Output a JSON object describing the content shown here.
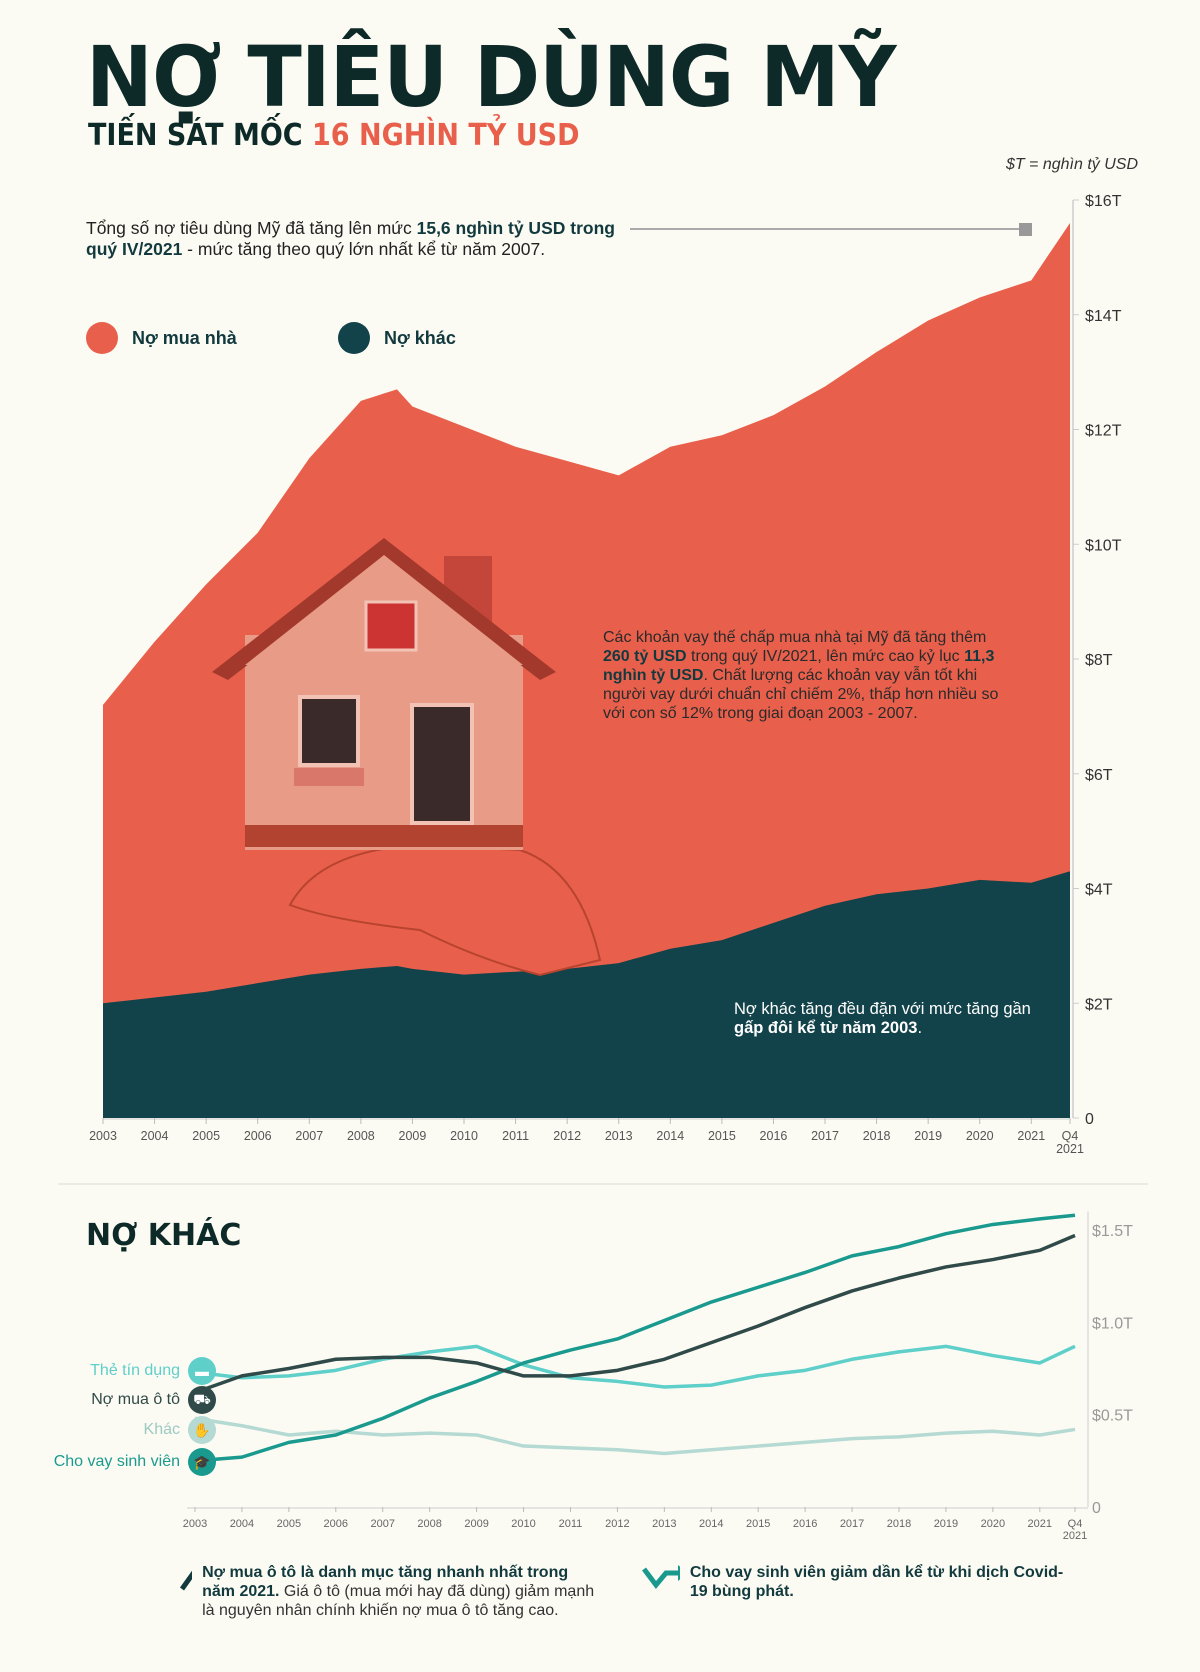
{
  "header": {
    "title": "NỢ TIÊU DÙNG MỸ",
    "subtitle_prefix": "TIẾN SÁT MỐC",
    "subtitle_highlight": "16 NGHÌN TỶ USD",
    "unit_note": "$T = nghìn tỷ USD"
  },
  "intro": {
    "text_before": "Tổng số nợ tiêu dùng Mỹ đã tăng lên mức ",
    "bold": "15,6 nghìn tỷ USD trong quý IV/2021",
    "text_after": " - mức tăng theo quý lớn nhất kể từ năm 2007."
  },
  "legend": [
    {
      "label": "Nợ mua nhà",
      "color": "#e8604c"
    },
    {
      "label": "Nợ khác",
      "color": "#12424a"
    }
  ],
  "mortgage_note": {
    "t1": "Các khoản vay thế chấp mua nhà tại Mỹ đã tăng thêm ",
    "b1": "260 tỷ USD",
    "t2": " trong quý IV/2021, lên mức cao kỷ lục ",
    "b2": "11,3 nghìn tỷ USD",
    "t3": ". Chất lượng các khoản vay vẫn tốt khi người vay dưới chuẩn chỉ chiếm 2%, thấp hơn nhiều so với con số 12% trong giai đoạn 2003 - 2007."
  },
  "other_note": {
    "t1": "Nợ khác tăng đều đặn với mức tăng gần ",
    "b1": "gấp đôi kể từ năm 2003",
    "t2": "."
  },
  "section2_title": "NỢ KHÁC",
  "notes": [
    {
      "icon": "trend-up-icon",
      "bold": "Nợ mua ô tô là danh mục tăng nhanh nhất trong năm 2021.",
      "text": " Giá ô tô (mua mới hay đã dùng) giảm mạnh là nguyên nhân chính khiến nợ mua ô tô tăng cao."
    },
    {
      "icon": "trend-down-up-icon",
      "bold": "Cho vay sinh viên giảm dần kể từ khi dịch Covid-19 bùng phát.",
      "text": ""
    }
  ],
  "chart_data": [
    {
      "type": "area",
      "stacked": true,
      "x_tick_labels": [
        "2003",
        "2004",
        "2005",
        "2006",
        "2007",
        "2008",
        "2009",
        "2010",
        "2011",
        "2012",
        "2013",
        "2014",
        "2015",
        "2016",
        "2017",
        "2018",
        "2019",
        "2020",
        "2021",
        "Q4 2021"
      ],
      "y_tick_labels": [
        "0",
        "$2T",
        "$4T",
        "$6T",
        "$8T",
        "$10T",
        "$12T",
        "$14T",
        "$16T"
      ],
      "ylim": [
        0,
        16
      ],
      "y_axis_position": "right",
      "x": [
        2003,
        2004,
        2005,
        2006,
        2007,
        2008,
        2008.7,
        2009,
        2010,
        2011,
        2012,
        2013,
        2014,
        2015,
        2016,
        2017,
        2018,
        2019,
        2020,
        2021,
        2021.75
      ],
      "series": [
        {
          "name": "Nợ khác",
          "color": "#12424a",
          "values": [
            2.0,
            2.1,
            2.2,
            2.35,
            2.5,
            2.6,
            2.65,
            2.6,
            2.5,
            2.55,
            2.6,
            2.7,
            2.95,
            3.1,
            3.4,
            3.7,
            3.9,
            4.0,
            4.15,
            4.1,
            4.3
          ]
        },
        {
          "name": "Nợ mua nhà",
          "color": "#e8604c",
          "total_values": [
            7.2,
            8.3,
            9.3,
            10.2,
            11.5,
            12.5,
            12.7,
            12.4,
            12.05,
            11.7,
            11.45,
            11.2,
            11.7,
            11.9,
            12.25,
            12.75,
            13.35,
            13.9,
            14.3,
            14.6,
            15.6
          ]
        }
      ],
      "annotation_marker_value": 15.6
    },
    {
      "type": "line",
      "x_tick_labels": [
        "2003",
        "2004",
        "2005",
        "2006",
        "2007",
        "2008",
        "2009",
        "2010",
        "2011",
        "2012",
        "2013",
        "2014",
        "2015",
        "2016",
        "2017",
        "2018",
        "2019",
        "2020",
        "2021",
        "Q4 2021"
      ],
      "y_tick_labels": [
        "0",
        "$0.5T",
        "$1.0T",
        "$1.5T"
      ],
      "ylim": [
        0,
        1.6
      ],
      "y_axis_position": "right",
      "x": [
        2003,
        2004,
        2005,
        2006,
        2007,
        2008,
        2009,
        2010,
        2011,
        2012,
        2013,
        2014,
        2015,
        2016,
        2017,
        2018,
        2019,
        2020,
        2021,
        2021.75
      ],
      "series": [
        {
          "name": "Thẻ tín dụng",
          "color": "#5ecfc9",
          "icon": "credit-card-icon",
          "values": [
            0.73,
            0.7,
            0.71,
            0.74,
            0.8,
            0.84,
            0.87,
            0.77,
            0.7,
            0.68,
            0.65,
            0.66,
            0.71,
            0.74,
            0.8,
            0.84,
            0.87,
            0.82,
            0.78,
            0.87
          ]
        },
        {
          "name": "Nợ mua ô tô",
          "color": "#2f4a49",
          "icon": "car-icon",
          "values": [
            0.62,
            0.71,
            0.75,
            0.8,
            0.81,
            0.81,
            0.78,
            0.71,
            0.71,
            0.74,
            0.8,
            0.89,
            0.98,
            1.08,
            1.17,
            1.24,
            1.3,
            1.34,
            1.39,
            1.47
          ]
        },
        {
          "name": "Khác",
          "color": "#b5d9d3",
          "icon": "hand-coin-icon",
          "values": [
            0.48,
            0.44,
            0.39,
            0.41,
            0.39,
            0.4,
            0.39,
            0.33,
            0.32,
            0.31,
            0.29,
            0.31,
            0.33,
            0.35,
            0.37,
            0.38,
            0.4,
            0.41,
            0.39,
            0.42
          ]
        },
        {
          "name": "Cho vay sinh viên",
          "color": "#1a9a8f",
          "icon": "graduation-cap-icon",
          "values": [
            0.25,
            0.27,
            0.35,
            0.39,
            0.48,
            0.59,
            0.68,
            0.78,
            0.85,
            0.91,
            1.01,
            1.11,
            1.19,
            1.27,
            1.36,
            1.41,
            1.48,
            1.53,
            1.56,
            1.58
          ]
        }
      ]
    }
  ]
}
